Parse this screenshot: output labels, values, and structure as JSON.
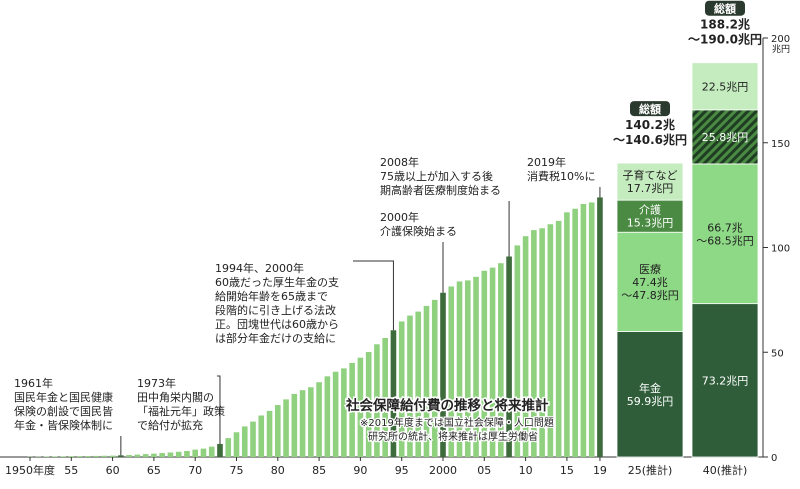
{
  "chart_data": {
    "type": "bar",
    "title": "社会保障給付費の推移と将来推計",
    "notes": [
      "※2019年度までは国立社会保障・人口問題",
      "研究所の統計、将来推計は厚生労働省"
    ],
    "y_unit": "兆円",
    "x": [
      1950,
      1951,
      1952,
      1953,
      1954,
      1955,
      1956,
      1957,
      1958,
      1959,
      1960,
      1961,
      1962,
      1963,
      1964,
      1965,
      1966,
      1967,
      1968,
      1969,
      1970,
      1971,
      1972,
      1973,
      1974,
      1975,
      1976,
      1977,
      1978,
      1979,
      1980,
      1981,
      1982,
      1983,
      1984,
      1985,
      1986,
      1987,
      1988,
      1989,
      1990,
      1991,
      1992,
      1993,
      1994,
      1995,
      1996,
      1997,
      1998,
      1999,
      2000,
      2001,
      2002,
      2003,
      2004,
      2005,
      2006,
      2007,
      2008,
      2009,
      2010,
      2011,
      2012,
      2013,
      2014,
      2015,
      2016,
      2017,
      2018,
      2019
    ],
    "values": [
      0.13,
      0.16,
      0.22,
      0.28,
      0.32,
      0.39,
      0.4,
      0.44,
      0.52,
      0.6,
      0.65,
      0.79,
      0.94,
      1.14,
      1.38,
      1.61,
      1.88,
      2.15,
      2.49,
      2.88,
      3.52,
      4.0,
      4.93,
      6.23,
      9.0,
      11.8,
      14.6,
      16.9,
      19.8,
      22.0,
      24.8,
      27.5,
      30.1,
      31.9,
      33.3,
      35.7,
      38.5,
      40.7,
      42.3,
      44.9,
      47.4,
      50.1,
      53.8,
      56.8,
      60.5,
      64.7,
      67.5,
      69.4,
      72.1,
      75.0,
      78.4,
      81.4,
      83.8,
      84.3,
      86.0,
      88.9,
      90.4,
      92.5,
      95.7,
      101.0,
      105.4,
      108.3,
      109.2,
      111.1,
      112.7,
      116.8,
      118.5,
      120.8,
      121.5,
      123.9
    ],
    "color": "#8fd17f",
    "highlight_color": "#3d6b3c",
    "highlight": [
      1961,
      1973,
      1994,
      2000,
      2008,
      2019
    ],
    "annotations": [
      [
        "1961年",
        "国民年金と国民健康",
        "保険の創設で国民皆",
        "年金・皆保険体制に"
      ],
      [
        "1973年",
        "田中角栄内閣の",
        "「福祉元年」政策",
        "で給付が拡充"
      ],
      [
        "1994年、2000年",
        "60歳だった厚生年金の支",
        "給開始年齢を65歳まで",
        "段階的に引き上げる法改",
        "正。団塊世代は60歳から",
        "は部分年金だけの支給に"
      ],
      [
        "2000年",
        "介護保険始まる"
      ],
      [
        "2008年",
        "75歳以上が加入する後",
        "期高齢者医療制度始まる"
      ],
      [
        "2019年",
        "消費税10%に"
      ]
    ],
    "xticks": [
      {
        "value": 1950,
        "label": "1950年度"
      },
      {
        "value": 1955,
        "label": "55"
      },
      {
        "value": 1960,
        "label": "60"
      },
      {
        "value": 1965,
        "label": "65"
      },
      {
        "value": 1970,
        "label": "70"
      },
      {
        "value": 1975,
        "label": "75"
      },
      {
        "value": 1980,
        "label": "80"
      },
      {
        "value": 1985,
        "label": "85"
      },
      {
        "value": 1990,
        "label": "90"
      },
      {
        "value": 1995,
        "label": "95"
      },
      2000,
      {
        "value": 2005,
        "label": "05"
      },
      {
        "value": 2010,
        "label": "10"
      },
      {
        "value": 2015,
        "label": "15"
      },
      {
        "value": 2019,
        "label": "19"
      }
    ],
    "ylim": [
      0,
      200
    ],
    "yticks": [
      0,
      50,
      100,
      150,
      200
    ],
    "projections": {
      "categories": [
        "25(推計)",
        "40(推計)"
      ],
      "total_heading": "総額",
      "totals": [
        [
          "140.2兆",
          "～140.6兆円"
        ],
        [
          "188.2兆",
          "～190.0兆円"
        ]
      ],
      "show_names": [
        true,
        false
      ],
      "series": [
        {
          "name": "年金",
          "color": "#2f5d3a",
          "values": [
            59.9,
            73.2
          ],
          "value_labels": [
            [
              "59.9兆円"
            ],
            [
              "73.2兆円"
            ]
          ]
        },
        {
          "name": "医療",
          "color": "#8ed986",
          "values": [
            47.4,
            66.7
          ],
          "value_labels": [
            [
              "47.4兆",
              "～47.8兆円"
            ],
            [
              "66.7兆",
              "～68.5兆円"
            ]
          ]
        },
        {
          "name": "介護",
          "color": "#4a8a42",
          "hatch": [
            false,
            true
          ],
          "values": [
            15.3,
            25.8
          ],
          "value_labels": [
            [
              "15.3兆円"
            ],
            [
              "25.8兆円"
            ]
          ]
        },
        {
          "name": "子育てなど",
          "color": "#c5ecbf",
          "values": [
            17.7,
            22.5
          ],
          "value_labels": [
            [
              "17.7兆円"
            ],
            [
              "22.5兆円"
            ]
          ]
        }
      ]
    }
  }
}
